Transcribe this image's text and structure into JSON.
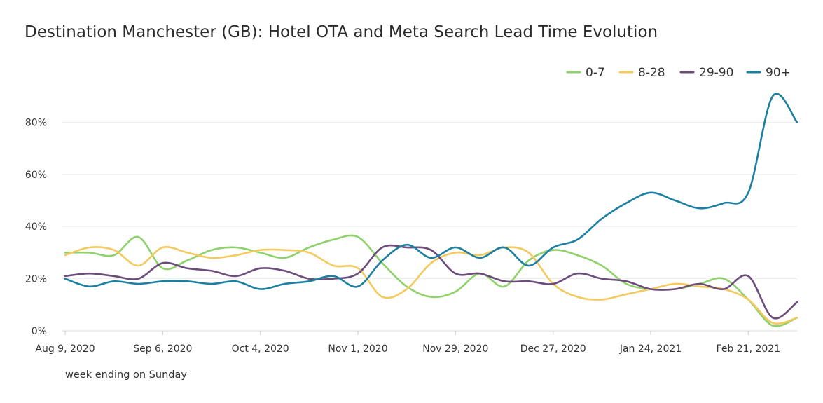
{
  "chart_data": {
    "type": "line",
    "title": "Destination Manchester (GB): Hotel OTA and Meta Search Lead Time Evolution",
    "xlabel": "week ending on Sunday",
    "ylabel": "",
    "ylim": [
      0,
      0.9
    ],
    "y_ticks": [
      {
        "value": 0,
        "label": "0%"
      },
      {
        "value": 0.2,
        "label": "20%"
      },
      {
        "value": 0.4,
        "label": "40%"
      },
      {
        "value": 0.6,
        "label": "60%"
      },
      {
        "value": 0.8,
        "label": "80%"
      }
    ],
    "x_ticks": [
      {
        "index": 0,
        "label": "Aug 9, 2020"
      },
      {
        "index": 4,
        "label": "Sep 6, 2020"
      },
      {
        "index": 8,
        "label": "Oct 4, 2020"
      },
      {
        "index": 12,
        "label": "Nov 1, 2020"
      },
      {
        "index": 16,
        "label": "Nov 29, 2020"
      },
      {
        "index": 20,
        "label": "Dec 27, 2020"
      },
      {
        "index": 24,
        "label": "Jan 24, 2021"
      },
      {
        "index": 28,
        "label": "Feb 21, 2021"
      }
    ],
    "x": [
      "2020-08-09",
      "2020-08-16",
      "2020-08-23",
      "2020-08-30",
      "2020-09-06",
      "2020-09-13",
      "2020-09-20",
      "2020-09-27",
      "2020-10-04",
      "2020-10-11",
      "2020-10-18",
      "2020-10-25",
      "2020-11-01",
      "2020-11-08",
      "2020-11-15",
      "2020-11-22",
      "2020-11-29",
      "2020-12-06",
      "2020-12-13",
      "2020-12-20",
      "2020-12-27",
      "2021-01-03",
      "2021-01-10",
      "2021-01-17",
      "2021-01-24",
      "2021-01-31",
      "2021-02-07",
      "2021-02-14",
      "2021-02-21",
      "2021-02-28",
      "2021-03-07"
    ],
    "series": [
      {
        "name": "0-7",
        "color": "#8fd16a",
        "values": [
          0.3,
          0.3,
          0.29,
          0.36,
          0.24,
          0.27,
          0.31,
          0.32,
          0.3,
          0.28,
          0.32,
          0.35,
          0.36,
          0.26,
          0.17,
          0.13,
          0.15,
          0.22,
          0.17,
          0.27,
          0.31,
          0.29,
          0.25,
          0.18,
          0.16,
          0.16,
          0.18,
          0.2,
          0.12,
          0.02,
          0.05
        ]
      },
      {
        "name": "8-28",
        "color": "#f4c95d",
        "values": [
          0.29,
          0.32,
          0.31,
          0.25,
          0.32,
          0.3,
          0.28,
          0.29,
          0.31,
          0.31,
          0.3,
          0.25,
          0.24,
          0.13,
          0.16,
          0.26,
          0.3,
          0.29,
          0.32,
          0.3,
          0.18,
          0.13,
          0.12,
          0.14,
          0.16,
          0.18,
          0.17,
          0.16,
          0.12,
          0.03,
          0.05
        ]
      },
      {
        "name": "29-90",
        "color": "#6b4c7a",
        "values": [
          0.21,
          0.22,
          0.21,
          0.2,
          0.26,
          0.24,
          0.23,
          0.21,
          0.24,
          0.23,
          0.2,
          0.2,
          0.22,
          0.32,
          0.32,
          0.31,
          0.22,
          0.22,
          0.19,
          0.19,
          0.18,
          0.22,
          0.2,
          0.19,
          0.16,
          0.16,
          0.18,
          0.16,
          0.21,
          0.05,
          0.11
        ]
      },
      {
        "name": "90+",
        "color": "#1b7fa3",
        "values": [
          0.2,
          0.17,
          0.19,
          0.18,
          0.19,
          0.19,
          0.18,
          0.19,
          0.16,
          0.18,
          0.19,
          0.21,
          0.17,
          0.27,
          0.33,
          0.28,
          0.32,
          0.28,
          0.32,
          0.25,
          0.32,
          0.35,
          0.43,
          0.49,
          0.53,
          0.5,
          0.47,
          0.49,
          0.53,
          0.9,
          0.8
        ]
      }
    ],
    "legend_position": "top-right",
    "grid": true
  }
}
